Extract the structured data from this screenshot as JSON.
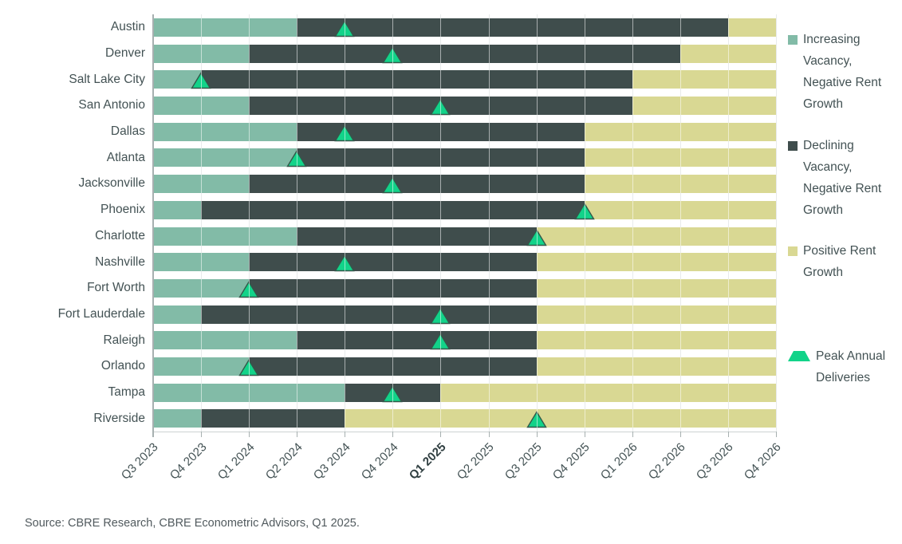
{
  "colors": {
    "increasing_vacancy": "#82bba7",
    "declining_vacancy": "#3f4d4c",
    "positive_rent_growth": "#d9d893",
    "peak_marker": "#12d389",
    "peak_marker_outline": "#33584a",
    "gridline": "#cdd2d2",
    "axis": "#a7b0b0",
    "text": "#435254"
  },
  "legend": {
    "items": [
      {
        "key": "increasing",
        "marker": "square",
        "label": "Increasing Vacancy, Negative Rent Growth"
      },
      {
        "key": "declining",
        "marker": "square",
        "label": "Declining Vacancy, Negative Rent Growth"
      },
      {
        "key": "positive",
        "marker": "square",
        "label": "Positive Rent Growth"
      },
      {
        "key": "peak",
        "marker": "triangle",
        "label": "Peak Annual Deliveries"
      }
    ]
  },
  "source_note": "Source: CBRE Research, CBRE Econometric Advisors, Q1 2025.",
  "chart_data": {
    "type": "bar",
    "variant": "horizontal-stacked-timeline",
    "grid": true,
    "legend_position": "right",
    "x_ticks": [
      "Q3 2023",
      "Q4 2023",
      "Q1 2024",
      "Q2 2024",
      "Q3 2024",
      "Q4 2024",
      "Q1 2025",
      "Q2 2025",
      "Q3 2025",
      "Q4 2025",
      "Q1 2026",
      "Q2 2026",
      "Q3 2026",
      "Q4 2026"
    ],
    "bold_tick": "Q1 2025",
    "phase_order": [
      "Increasing Vacancy, Negative Rent Growth",
      "Declining Vacancy, Negative Rent Growth",
      "Positive Rent Growth"
    ],
    "rows": [
      {
        "city": "Austin",
        "increasing_until": "Q2 2024",
        "declining_until": "Q3 2026",
        "peak": "Q3 2024"
      },
      {
        "city": "Denver",
        "increasing_until": "Q1 2024",
        "declining_until": "Q2 2026",
        "peak": "Q4 2024"
      },
      {
        "city": "Salt Lake City",
        "increasing_until": "Q4 2023",
        "declining_until": "Q1 2026",
        "peak": "Q4 2023"
      },
      {
        "city": "San Antonio",
        "increasing_until": "Q1 2024",
        "declining_until": "Q1 2026",
        "peak": "Q1 2025"
      },
      {
        "city": "Dallas",
        "increasing_until": "Q2 2024",
        "declining_until": "Q4 2025",
        "peak": "Q3 2024"
      },
      {
        "city": "Atlanta",
        "increasing_until": "Q2 2024",
        "declining_until": "Q4 2025",
        "peak": "Q2 2024"
      },
      {
        "city": "Jacksonville",
        "increasing_until": "Q1 2024",
        "declining_until": "Q4 2025",
        "peak": "Q4 2024"
      },
      {
        "city": "Phoenix",
        "increasing_until": "Q4 2023",
        "declining_until": "Q4 2025",
        "peak": "Q4 2025"
      },
      {
        "city": "Charlotte",
        "increasing_until": "Q2 2024",
        "declining_until": "Q3 2025",
        "peak": "Q3 2025"
      },
      {
        "city": "Nashville",
        "increasing_until": "Q1 2024",
        "declining_until": "Q3 2025",
        "peak": "Q3 2024"
      },
      {
        "city": "Fort Worth",
        "increasing_until": "Q1 2024",
        "declining_until": "Q3 2025",
        "peak": "Q1 2024"
      },
      {
        "city": "Fort Lauderdale",
        "increasing_until": "Q4 2023",
        "declining_until": "Q3 2025",
        "peak": "Q1 2025"
      },
      {
        "city": "Raleigh",
        "increasing_until": "Q2 2024",
        "declining_until": "Q3 2025",
        "peak": "Q1 2025"
      },
      {
        "city": "Orlando",
        "increasing_until": "Q1 2024",
        "declining_until": "Q3 2025",
        "peak": "Q1 2024"
      },
      {
        "city": "Tampa",
        "increasing_until": "Q3 2024",
        "declining_until": "Q1 2025",
        "peak": "Q4 2024"
      },
      {
        "city": "Riverside",
        "increasing_until": "Q4 2023",
        "declining_until": "Q3 2024",
        "peak": "Q3 2025"
      }
    ]
  }
}
